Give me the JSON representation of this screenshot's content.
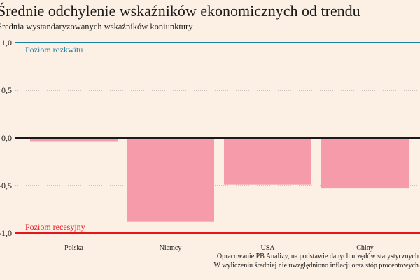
{
  "chart_data": {
    "type": "bar",
    "title": "Średnie odchylenie wskaźników ekonomicznych od trendu",
    "subtitle": "Średnia wystandaryzowanych wskaźników koniunktury",
    "categories": [
      "Polska",
      "Niemcy",
      "USA",
      "Chiny"
    ],
    "values": [
      -0.04,
      -0.88,
      -0.49,
      -0.53
    ],
    "ylim": [
      -1.0,
      1.0
    ],
    "yticks": [
      1.0,
      0.5,
      0.0,
      -0.5,
      -1.0
    ],
    "ytick_labels": [
      "1,0",
      "0,5",
      "0,0",
      "-0,5",
      "-1,0"
    ],
    "grid": "dotted at ±0,5",
    "reference_lines": [
      {
        "value": 1.0,
        "label": "Poziom rozkwitu",
        "color": "#1b7fa3"
      },
      {
        "value": -1.0,
        "label": "Poziom recesyjny",
        "color": "#e8141c"
      }
    ],
    "bar_color": "#f59ba9",
    "source_lines": [
      "Opracowanie PB Analizy, na podstawie danych urzędów statystycznych",
      "W wyliczeniu średniej nie uwzględniono inflacji oraz stóp procentowych"
    ]
  }
}
